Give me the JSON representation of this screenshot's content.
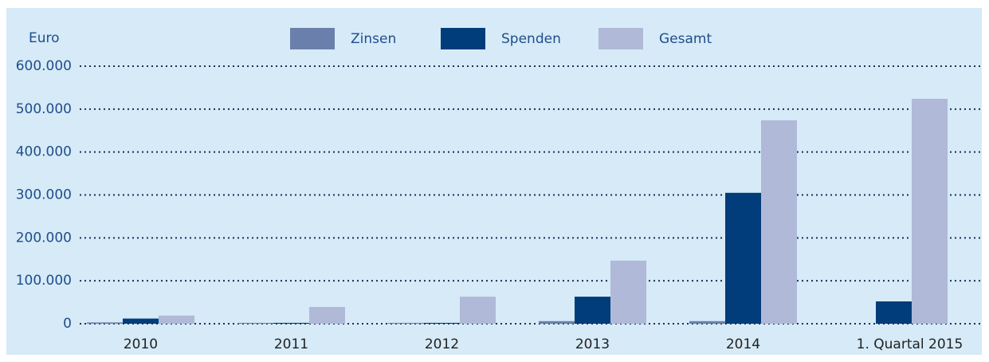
{
  "chart_data": {
    "type": "bar",
    "y_label": "Euro",
    "categories": [
      "2010",
      "2011",
      "2012",
      "2013",
      "2014",
      "1. Quartal 2015"
    ],
    "series": [
      {
        "name": "Zinsen",
        "color": "#6a7fab",
        "values": [
          3000,
          2000,
          2000,
          6000,
          6000,
          null
        ]
      },
      {
        "name": "Spenden",
        "color": "#003d7a",
        "values": [
          12000,
          2000,
          2000,
          63000,
          305000,
          52000
        ]
      },
      {
        "name": "Gesamt",
        "color": "#b0b9d8",
        "values": [
          19000,
          39000,
          63000,
          147000,
          474000,
          524000
        ]
      }
    ],
    "ylim": [
      0,
      600000
    ],
    "yticks": [
      0,
      {
        "value": 100000,
        "label": "100.000"
      },
      {
        "value": 200000,
        "label": "200.000"
      },
      {
        "value": 300000,
        "label": "300.000"
      },
      {
        "value": 400000,
        "label": "400.000"
      },
      {
        "value": 500000,
        "label": "500.000"
      },
      {
        "value": 600000,
        "label": "600.000"
      }
    ],
    "grid": true
  }
}
